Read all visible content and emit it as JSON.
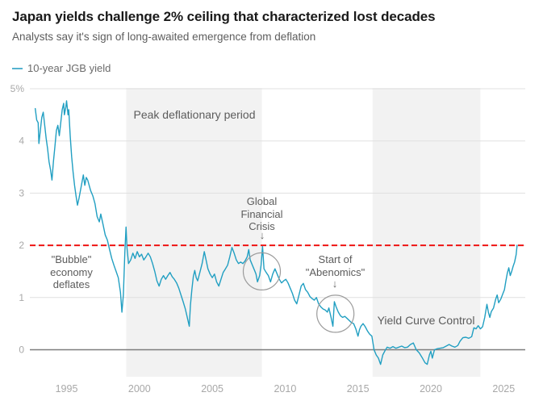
{
  "icons": {
    "down_arrow": "↓"
  },
  "colors": {
    "line": "#219fc2",
    "legend_swatch": "#55b3d0",
    "ceiling": "#ee1312",
    "shading": "#f2f2f2",
    "grid": "#e0e0e0",
    "zero_line": "#7d7d7d",
    "axis_text": "#a8a8a8",
    "circle": "#9b9b9b"
  },
  "chart_data": {
    "type": "line",
    "title": "Japan yields challenge 2% ceiling that characterized lost decades",
    "subtitle": "Analysts say it's sign of long-awaited emergence from deflation",
    "xlabel": "",
    "ylabel": "",
    "grid": "horizontal",
    "legend_position": "top-left",
    "xlim": [
      1992.3,
      2026.5
    ],
    "ylim": [
      -0.55,
      5
    ],
    "yticks": [
      {
        "value": 5,
        "label": "5%"
      },
      {
        "value": 4,
        "label": "4"
      },
      {
        "value": 3,
        "label": "3"
      },
      {
        "value": 2,
        "label": "2"
      },
      {
        "value": 1,
        "label": "1"
      },
      {
        "value": 0,
        "label": "0"
      }
    ],
    "xticks": [
      {
        "value": 1995,
        "label": "1995"
      },
      {
        "value": 2000,
        "label": "2000"
      },
      {
        "value": 2005,
        "label": "2005"
      },
      {
        "value": 2010,
        "label": "2010"
      },
      {
        "value": 2015,
        "label": "2015"
      },
      {
        "value": 2020,
        "label": "2020"
      },
      {
        "value": 2025,
        "label": "2025"
      }
    ],
    "ceiling_line": {
      "value": 2.0,
      "style": "dashed",
      "color_key": "ceiling"
    },
    "shaded_regions": [
      {
        "id": "peak-deflation",
        "label": "Peak deflationary period",
        "from": 1999.1,
        "to": 2008.4
      },
      {
        "id": "ycc",
        "label": "Yield Curve Control",
        "from": 2016.0,
        "to": 2023.4
      }
    ],
    "annotations": {
      "bubble": {
        "text": "\"Bubble\" economy deflates"
      },
      "gfc": {
        "text": "Global Financial Crisis",
        "arrow": "down",
        "circle": {
          "x": 2008.4,
          "y": 1.5,
          "r": 23
        }
      },
      "abenomics": {
        "text": "Start of \"Abenomics\"",
        "arrow": "down",
        "circle": {
          "x": 2013.45,
          "y": 0.69,
          "r": 23
        }
      }
    },
    "series": [
      {
        "name": "10-year JGB yield",
        "color_key": "line",
        "points": [
          [
            1992.85,
            4.62
          ],
          [
            1992.95,
            4.4
          ],
          [
            1993.05,
            4.35
          ],
          [
            1993.1,
            3.95
          ],
          [
            1993.2,
            4.2
          ],
          [
            1993.3,
            4.45
          ],
          [
            1993.4,
            4.55
          ],
          [
            1993.5,
            4.3
          ],
          [
            1993.6,
            4.05
          ],
          [
            1993.7,
            3.85
          ],
          [
            1993.8,
            3.6
          ],
          [
            1993.9,
            3.45
          ],
          [
            1994.0,
            3.25
          ],
          [
            1994.1,
            3.6
          ],
          [
            1994.2,
            3.9
          ],
          [
            1994.3,
            4.2
          ],
          [
            1994.4,
            4.3
          ],
          [
            1994.5,
            4.1
          ],
          [
            1994.6,
            4.35
          ],
          [
            1994.7,
            4.6
          ],
          [
            1994.8,
            4.72
          ],
          [
            1994.85,
            4.5
          ],
          [
            1994.95,
            4.65
          ],
          [
            1995.0,
            4.77
          ],
          [
            1995.1,
            4.5
          ],
          [
            1995.15,
            4.6
          ],
          [
            1995.25,
            4.1
          ],
          [
            1995.35,
            3.7
          ],
          [
            1995.45,
            3.4
          ],
          [
            1995.55,
            3.15
          ],
          [
            1995.65,
            2.95
          ],
          [
            1995.75,
            2.77
          ],
          [
            1995.85,
            2.9
          ],
          [
            1995.95,
            3.05
          ],
          [
            1996.05,
            3.2
          ],
          [
            1996.15,
            3.35
          ],
          [
            1996.25,
            3.15
          ],
          [
            1996.35,
            3.3
          ],
          [
            1996.45,
            3.25
          ],
          [
            1996.55,
            3.15
          ],
          [
            1996.65,
            3.05
          ],
          [
            1996.8,
            2.95
          ],
          [
            1996.95,
            2.8
          ],
          [
            1997.1,
            2.55
          ],
          [
            1997.25,
            2.45
          ],
          [
            1997.35,
            2.6
          ],
          [
            1997.5,
            2.4
          ],
          [
            1997.65,
            2.2
          ],
          [
            1997.8,
            2.1
          ],
          [
            1997.95,
            1.92
          ],
          [
            1998.1,
            1.75
          ],
          [
            1998.25,
            1.62
          ],
          [
            1998.4,
            1.5
          ],
          [
            1998.55,
            1.38
          ],
          [
            1998.7,
            1.1
          ],
          [
            1998.8,
            0.72
          ],
          [
            1998.9,
            1.05
          ],
          [
            1999.0,
            1.85
          ],
          [
            1999.08,
            2.35
          ],
          [
            1999.15,
            1.95
          ],
          [
            1999.25,
            1.65
          ],
          [
            1999.4,
            1.72
          ],
          [
            1999.55,
            1.85
          ],
          [
            1999.7,
            1.75
          ],
          [
            1999.85,
            1.88
          ],
          [
            2000.0,
            1.78
          ],
          [
            2000.15,
            1.83
          ],
          [
            2000.3,
            1.72
          ],
          [
            2000.45,
            1.78
          ],
          [
            2000.6,
            1.85
          ],
          [
            2000.75,
            1.78
          ],
          [
            2000.9,
            1.65
          ],
          [
            2001.05,
            1.5
          ],
          [
            2001.2,
            1.32
          ],
          [
            2001.35,
            1.22
          ],
          [
            2001.5,
            1.35
          ],
          [
            2001.65,
            1.42
          ],
          [
            2001.8,
            1.35
          ],
          [
            2001.95,
            1.42
          ],
          [
            2002.1,
            1.48
          ],
          [
            2002.25,
            1.4
          ],
          [
            2002.4,
            1.35
          ],
          [
            2002.55,
            1.28
          ],
          [
            2002.7,
            1.18
          ],
          [
            2002.85,
            1.05
          ],
          [
            2003.0,
            0.92
          ],
          [
            2003.15,
            0.78
          ],
          [
            2003.3,
            0.6
          ],
          [
            2003.42,
            0.45
          ],
          [
            2003.5,
            0.85
          ],
          [
            2003.6,
            1.15
          ],
          [
            2003.7,
            1.4
          ],
          [
            2003.8,
            1.52
          ],
          [
            2003.9,
            1.38
          ],
          [
            2004.0,
            1.32
          ],
          [
            2004.15,
            1.48
          ],
          [
            2004.3,
            1.65
          ],
          [
            2004.45,
            1.88
          ],
          [
            2004.55,
            1.75
          ],
          [
            2004.7,
            1.55
          ],
          [
            2004.85,
            1.45
          ],
          [
            2005.0,
            1.38
          ],
          [
            2005.15,
            1.45
          ],
          [
            2005.3,
            1.3
          ],
          [
            2005.45,
            1.22
          ],
          [
            2005.6,
            1.35
          ],
          [
            2005.75,
            1.48
          ],
          [
            2005.9,
            1.55
          ],
          [
            2006.05,
            1.62
          ],
          [
            2006.2,
            1.78
          ],
          [
            2006.35,
            1.96
          ],
          [
            2006.5,
            1.85
          ],
          [
            2006.65,
            1.72
          ],
          [
            2006.8,
            1.65
          ],
          [
            2006.95,
            1.68
          ],
          [
            2007.1,
            1.65
          ],
          [
            2007.25,
            1.7
          ],
          [
            2007.4,
            1.78
          ],
          [
            2007.5,
            1.92
          ],
          [
            2007.6,
            1.72
          ],
          [
            2007.75,
            1.62
          ],
          [
            2007.9,
            1.52
          ],
          [
            2008.0,
            1.45
          ],
          [
            2008.1,
            1.3
          ],
          [
            2008.25,
            1.42
          ],
          [
            2008.35,
            1.62
          ],
          [
            2008.45,
            1.98
          ],
          [
            2008.55,
            1.55
          ],
          [
            2008.7,
            1.48
          ],
          [
            2008.85,
            1.42
          ],
          [
            2009.0,
            1.3
          ],
          [
            2009.15,
            1.45
          ],
          [
            2009.3,
            1.55
          ],
          [
            2009.45,
            1.45
          ],
          [
            2009.6,
            1.35
          ],
          [
            2009.75,
            1.28
          ],
          [
            2009.9,
            1.32
          ],
          [
            2010.05,
            1.35
          ],
          [
            2010.2,
            1.28
          ],
          [
            2010.35,
            1.18
          ],
          [
            2010.5,
            1.08
          ],
          [
            2010.65,
            0.95
          ],
          [
            2010.8,
            0.88
          ],
          [
            2010.95,
            1.05
          ],
          [
            2011.1,
            1.22
          ],
          [
            2011.25,
            1.27
          ],
          [
            2011.4,
            1.15
          ],
          [
            2011.55,
            1.1
          ],
          [
            2011.7,
            1.02
          ],
          [
            2011.85,
            0.98
          ],
          [
            2012.0,
            0.95
          ],
          [
            2012.15,
            1.0
          ],
          [
            2012.3,
            0.88
          ],
          [
            2012.45,
            0.82
          ],
          [
            2012.6,
            0.78
          ],
          [
            2012.75,
            0.76
          ],
          [
            2012.9,
            0.72
          ],
          [
            2013.0,
            0.8
          ],
          [
            2013.15,
            0.62
          ],
          [
            2013.28,
            0.45
          ],
          [
            2013.38,
            0.92
          ],
          [
            2013.5,
            0.82
          ],
          [
            2013.65,
            0.72
          ],
          [
            2013.8,
            0.65
          ],
          [
            2013.95,
            0.62
          ],
          [
            2014.1,
            0.64
          ],
          [
            2014.25,
            0.6
          ],
          [
            2014.4,
            0.56
          ],
          [
            2014.55,
            0.52
          ],
          [
            2014.7,
            0.5
          ],
          [
            2014.85,
            0.4
          ],
          [
            2015.0,
            0.26
          ],
          [
            2015.1,
            0.38
          ],
          [
            2015.2,
            0.45
          ],
          [
            2015.35,
            0.5
          ],
          [
            2015.5,
            0.44
          ],
          [
            2015.65,
            0.36
          ],
          [
            2015.8,
            0.3
          ],
          [
            2015.95,
            0.26
          ],
          [
            2016.1,
            0.0
          ],
          [
            2016.25,
            -0.1
          ],
          [
            2016.4,
            -0.16
          ],
          [
            2016.55,
            -0.28
          ],
          [
            2016.7,
            -0.1
          ],
          [
            2016.85,
            -0.02
          ],
          [
            2017.0,
            0.05
          ],
          [
            2017.2,
            0.03
          ],
          [
            2017.4,
            0.06
          ],
          [
            2017.6,
            0.03
          ],
          [
            2017.8,
            0.05
          ],
          [
            2018.0,
            0.07
          ],
          [
            2018.2,
            0.04
          ],
          [
            2018.4,
            0.05
          ],
          [
            2018.6,
            0.1
          ],
          [
            2018.8,
            0.13
          ],
          [
            2019.0,
            0.0
          ],
          [
            2019.2,
            -0.06
          ],
          [
            2019.4,
            -0.15
          ],
          [
            2019.6,
            -0.25
          ],
          [
            2019.75,
            -0.28
          ],
          [
            2019.9,
            -0.1
          ],
          [
            2020.0,
            -0.03
          ],
          [
            2020.1,
            -0.16
          ],
          [
            2020.25,
            0.0
          ],
          [
            2020.45,
            0.02
          ],
          [
            2020.65,
            0.03
          ],
          [
            2020.85,
            0.04
          ],
          [
            2021.05,
            0.07
          ],
          [
            2021.25,
            0.1
          ],
          [
            2021.45,
            0.07
          ],
          [
            2021.65,
            0.05
          ],
          [
            2021.85,
            0.08
          ],
          [
            2022.0,
            0.16
          ],
          [
            2022.2,
            0.23
          ],
          [
            2022.4,
            0.24
          ],
          [
            2022.6,
            0.22
          ],
          [
            2022.8,
            0.25
          ],
          [
            2022.95,
            0.42
          ],
          [
            2023.1,
            0.4
          ],
          [
            2023.25,
            0.46
          ],
          [
            2023.4,
            0.4
          ],
          [
            2023.55,
            0.44
          ],
          [
            2023.7,
            0.62
          ],
          [
            2023.85,
            0.87
          ],
          [
            2023.95,
            0.72
          ],
          [
            2024.05,
            0.62
          ],
          [
            2024.15,
            0.73
          ],
          [
            2024.3,
            0.8
          ],
          [
            2024.45,
            0.97
          ],
          [
            2024.55,
            1.05
          ],
          [
            2024.65,
            0.9
          ],
          [
            2024.8,
            0.97
          ],
          [
            2024.95,
            1.08
          ],
          [
            2025.05,
            1.15
          ],
          [
            2025.15,
            1.32
          ],
          [
            2025.25,
            1.47
          ],
          [
            2025.35,
            1.57
          ],
          [
            2025.45,
            1.42
          ],
          [
            2025.55,
            1.5
          ],
          [
            2025.65,
            1.6
          ],
          [
            2025.75,
            1.68
          ],
          [
            2025.85,
            1.82
          ],
          [
            2025.92,
            2.0
          ]
        ]
      }
    ]
  }
}
